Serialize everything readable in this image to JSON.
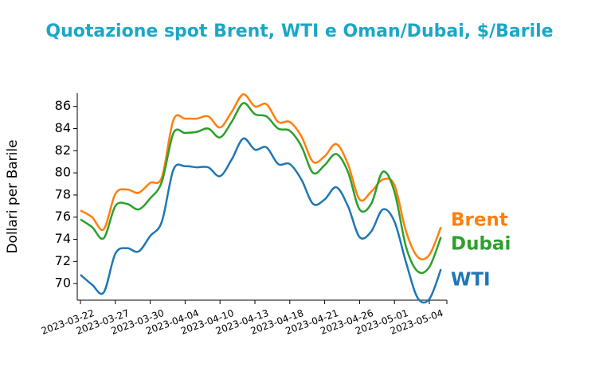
{
  "chart_data": {
    "type": "line",
    "title": "Quotazione spot Brent, WTI e Oman/Dubai, $/Barile",
    "y_label": "Dollari per Barile",
    "x": [
      "2023-03-22",
      "2023-03-23",
      "2023-03-24",
      "2023-03-27",
      "2023-03-28",
      "2023-03-29",
      "2023-03-30",
      "2023-03-31",
      "2023-04-03",
      "2023-04-04",
      "2023-04-05",
      "2023-04-06",
      "2023-04-10",
      "2023-04-11",
      "2023-04-12",
      "2023-04-13",
      "2023-04-14",
      "2023-04-17",
      "2023-04-18",
      "2023-04-19",
      "2023-04-20",
      "2023-04-21",
      "2023-04-24",
      "2023-04-25",
      "2023-04-26",
      "2023-04-27",
      "2023-04-28",
      "2023-05-01",
      "2023-05-02",
      "2023-05-03",
      "2023-05-04",
      "2023-05-05"
    ],
    "xticks": [
      "2023-03-22",
      "2023-03-27",
      "2023-03-30",
      "2023-04-04",
      "2023-04-10",
      "2023-04-13",
      "2023-04-18",
      "2023-04-21",
      "2023-04-26",
      "2023-05-01",
      "2023-05-04"
    ],
    "ylim": [
      68.5,
      87.2
    ],
    "yticks": [
      70,
      72,
      74,
      76,
      78,
      80,
      82,
      84,
      86
    ],
    "series": [
      {
        "name": "Brent",
        "color": "#ff7f0e",
        "values": [
          76.6,
          76.0,
          74.9,
          78.1,
          78.5,
          78.2,
          79.1,
          79.6,
          84.8,
          84.9,
          84.9,
          85.1,
          84.1,
          85.5,
          87.1,
          86.0,
          86.2,
          84.6,
          84.6,
          83.3,
          81.0,
          81.5,
          82.6,
          80.8,
          77.6,
          78.3,
          79.4,
          78.9,
          74.7,
          72.4,
          72.6,
          75.1
        ]
      },
      {
        "name": "Dubai",
        "color": "#2ca02c",
        "values": [
          75.8,
          75.1,
          74.1,
          77.0,
          77.2,
          76.7,
          77.7,
          79.2,
          83.6,
          83.6,
          83.7,
          84.0,
          83.2,
          84.6,
          86.3,
          85.3,
          85.1,
          84.0,
          83.8,
          82.4,
          80.0,
          80.7,
          81.7,
          80.1,
          76.7,
          77.2,
          80.1,
          78.3,
          73.3,
          71.1,
          71.5,
          74.2
        ]
      },
      {
        "name": "WTI",
        "color": "#1f77b4",
        "values": [
          70.8,
          69.9,
          69.2,
          72.7,
          73.2,
          72.9,
          74.3,
          75.6,
          80.3,
          80.6,
          80.5,
          80.5,
          79.7,
          81.2,
          83.1,
          82.1,
          82.3,
          80.8,
          80.8,
          79.4,
          77.2,
          77.6,
          78.7,
          77.0,
          74.2,
          74.7,
          76.7,
          75.6,
          71.9,
          68.7,
          68.6,
          71.3
        ]
      }
    ]
  }
}
